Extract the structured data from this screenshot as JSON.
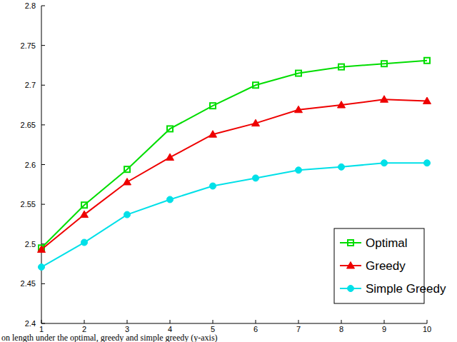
{
  "chart_data": {
    "type": "line",
    "caption": "on length under the optimal, greedy and simple greedy (y-axis)",
    "x": [
      1,
      2,
      3,
      4,
      5,
      6,
      7,
      8,
      9,
      10
    ],
    "series": [
      {
        "name": "Optimal",
        "color": "#00dd00",
        "marker": "square",
        "values": [
          2.495,
          2.549,
          2.594,
          2.645,
          2.674,
          2.7,
          2.715,
          2.723,
          2.727,
          2.731
        ]
      },
      {
        "name": "Greedy",
        "color": "#ee0000",
        "marker": "triangle",
        "values": [
          2.493,
          2.537,
          2.578,
          2.609,
          2.638,
          2.652,
          2.669,
          2.675,
          2.682,
          2.68
        ]
      },
      {
        "name": "Simple Greedy",
        "color": "#00e0e8",
        "marker": "circle",
        "values": [
          2.471,
          2.502,
          2.537,
          2.556,
          2.573,
          2.583,
          2.593,
          2.597,
          2.602,
          2.602
        ]
      }
    ],
    "xlim": [
      1,
      10
    ],
    "xticks": [
      1,
      2,
      3,
      4,
      5,
      6,
      7,
      8,
      9,
      10
    ],
    "ylim": [
      2.4,
      2.8
    ],
    "yticks": [
      {
        "value": 2.4,
        "label": "2.4"
      },
      2.45,
      {
        "value": 2.5,
        "label": "2.5"
      },
      2.55,
      {
        "value": 2.6,
        "label": "2.6"
      },
      2.65,
      {
        "value": 2.7,
        "label": "2.7"
      },
      2.75,
      {
        "value": 2.8,
        "label": "2.8"
      }
    ],
    "grid": false,
    "legend": "lower right"
  }
}
